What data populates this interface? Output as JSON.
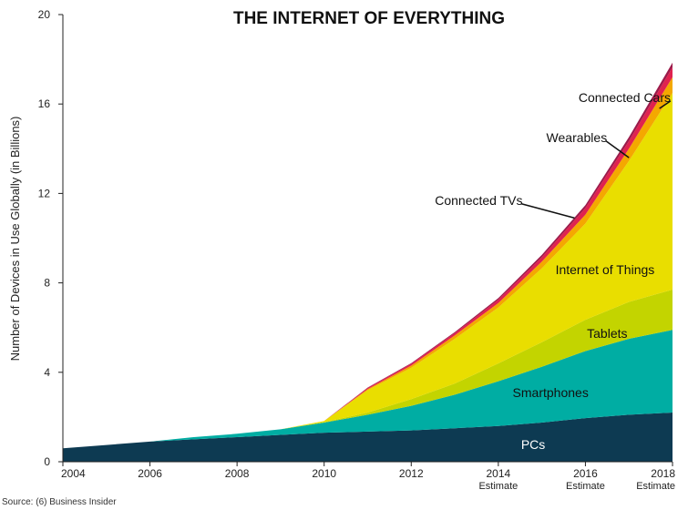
{
  "chart_data": {
    "type": "area",
    "stacked": true,
    "title": "THE INTERNET OF EVERYTHING",
    "ylabel": "Number of Devices in Use Globally (in Billions)",
    "xlabel": "",
    "xlim": [
      2004,
      2018
    ],
    "ylim": [
      0,
      20
    ],
    "x": [
      2004,
      2005,
      2006,
      2007,
      2008,
      2009,
      2010,
      2011,
      2012,
      2013,
      2014,
      2015,
      2016,
      2017,
      2018
    ],
    "x_ticks": [
      {
        "value": 2004,
        "label": "2004",
        "sub": ""
      },
      {
        "value": 2006,
        "label": "2006",
        "sub": ""
      },
      {
        "value": 2008,
        "label": "2008",
        "sub": ""
      },
      {
        "value": 2010,
        "label": "2010",
        "sub": ""
      },
      {
        "value": 2012,
        "label": "2012",
        "sub": ""
      },
      {
        "value": 2014,
        "label": "2014",
        "sub": "Estimate"
      },
      {
        "value": 2016,
        "label": "2016",
        "sub": "Estimate"
      },
      {
        "value": 2018,
        "label": "2018",
        "sub": "Estimate"
      }
    ],
    "y_ticks": [
      0,
      4,
      8,
      12,
      16,
      20
    ],
    "series": [
      {
        "name": "PCs",
        "color": "#0d3a52",
        "values": [
          0.6,
          0.75,
          0.9,
          1.0,
          1.1,
          1.2,
          1.3,
          1.35,
          1.4,
          1.5,
          1.6,
          1.75,
          1.95,
          2.1,
          2.2
        ]
      },
      {
        "name": "Smartphones",
        "color": "#00ada3",
        "values": [
          0.0,
          0.0,
          0.0,
          0.1,
          0.15,
          0.25,
          0.45,
          0.75,
          1.1,
          1.5,
          2.0,
          2.5,
          3.0,
          3.4,
          3.7
        ]
      },
      {
        "name": "Tablets",
        "color": "#c3d400",
        "values": [
          0.0,
          0.0,
          0.0,
          0.0,
          0.0,
          0.0,
          0.02,
          0.1,
          0.3,
          0.5,
          0.8,
          1.1,
          1.4,
          1.65,
          1.8
        ]
      },
      {
        "name": "Internet of Things",
        "color": "#e9de00",
        "values": [
          0.0,
          0.0,
          0.0,
          0.0,
          0.0,
          0.0,
          0.05,
          1.0,
          1.4,
          2.0,
          2.5,
          3.3,
          4.3,
          6.3,
          8.8
        ]
      },
      {
        "name": "Connected TVs",
        "color": "#f4a800",
        "values": [
          0.0,
          0.0,
          0.0,
          0.0,
          0.0,
          0.0,
          0.0,
          0.05,
          0.1,
          0.15,
          0.2,
          0.3,
          0.4,
          0.55,
          0.7
        ]
      },
      {
        "name": "Wearables",
        "color": "#e0224f",
        "values": [
          0.0,
          0.0,
          0.0,
          0.0,
          0.0,
          0.0,
          0.0,
          0.05,
          0.08,
          0.1,
          0.15,
          0.2,
          0.3,
          0.35,
          0.45
        ]
      },
      {
        "name": "Connected Cars",
        "color": "#9c1a4a",
        "values": [
          0.0,
          0.0,
          0.0,
          0.0,
          0.0,
          0.0,
          0.0,
          0.02,
          0.03,
          0.05,
          0.07,
          0.1,
          0.13,
          0.17,
          0.2
        ]
      }
    ],
    "annotations": [
      {
        "series": "PCs",
        "text": "PCs",
        "at": [
          2014.8,
          0.78
        ],
        "style": "light"
      },
      {
        "series": "Smartphones",
        "text": "Smartphones",
        "at": [
          2015.2,
          3.1
        ],
        "style": "dark"
      },
      {
        "series": "Tablets",
        "text": "Tablets",
        "at": [
          2016.5,
          5.75
        ],
        "style": "dark"
      },
      {
        "series": "Internet of Things",
        "text": "Internet of Things",
        "at": [
          2016.45,
          8.6
        ],
        "style": "dark"
      },
      {
        "series": "Connected TVs",
        "text": "Connected TVs",
        "at": [
          2013.55,
          11.7
        ],
        "style": "dark",
        "leader_to": [
          2015.75,
          10.9
        ]
      },
      {
        "series": "Wearables",
        "text": "Wearables",
        "at": [
          2015.8,
          14.5
        ],
        "style": "dark",
        "leader_to": [
          2017.0,
          13.6
        ]
      },
      {
        "series": "Connected Cars",
        "text": "Connected Cars",
        "at": [
          2016.9,
          16.3
        ],
        "style": "dark",
        "leader_to": [
          2017.7,
          15.8
        ]
      }
    ],
    "source": "Source: (6) Business Insider"
  }
}
